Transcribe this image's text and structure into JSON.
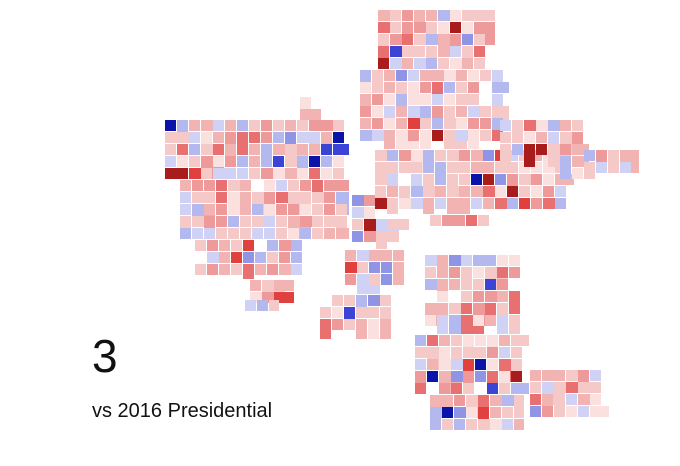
{
  "label": {
    "number": "3",
    "caption": "vs 2016 Presidential"
  }
}
